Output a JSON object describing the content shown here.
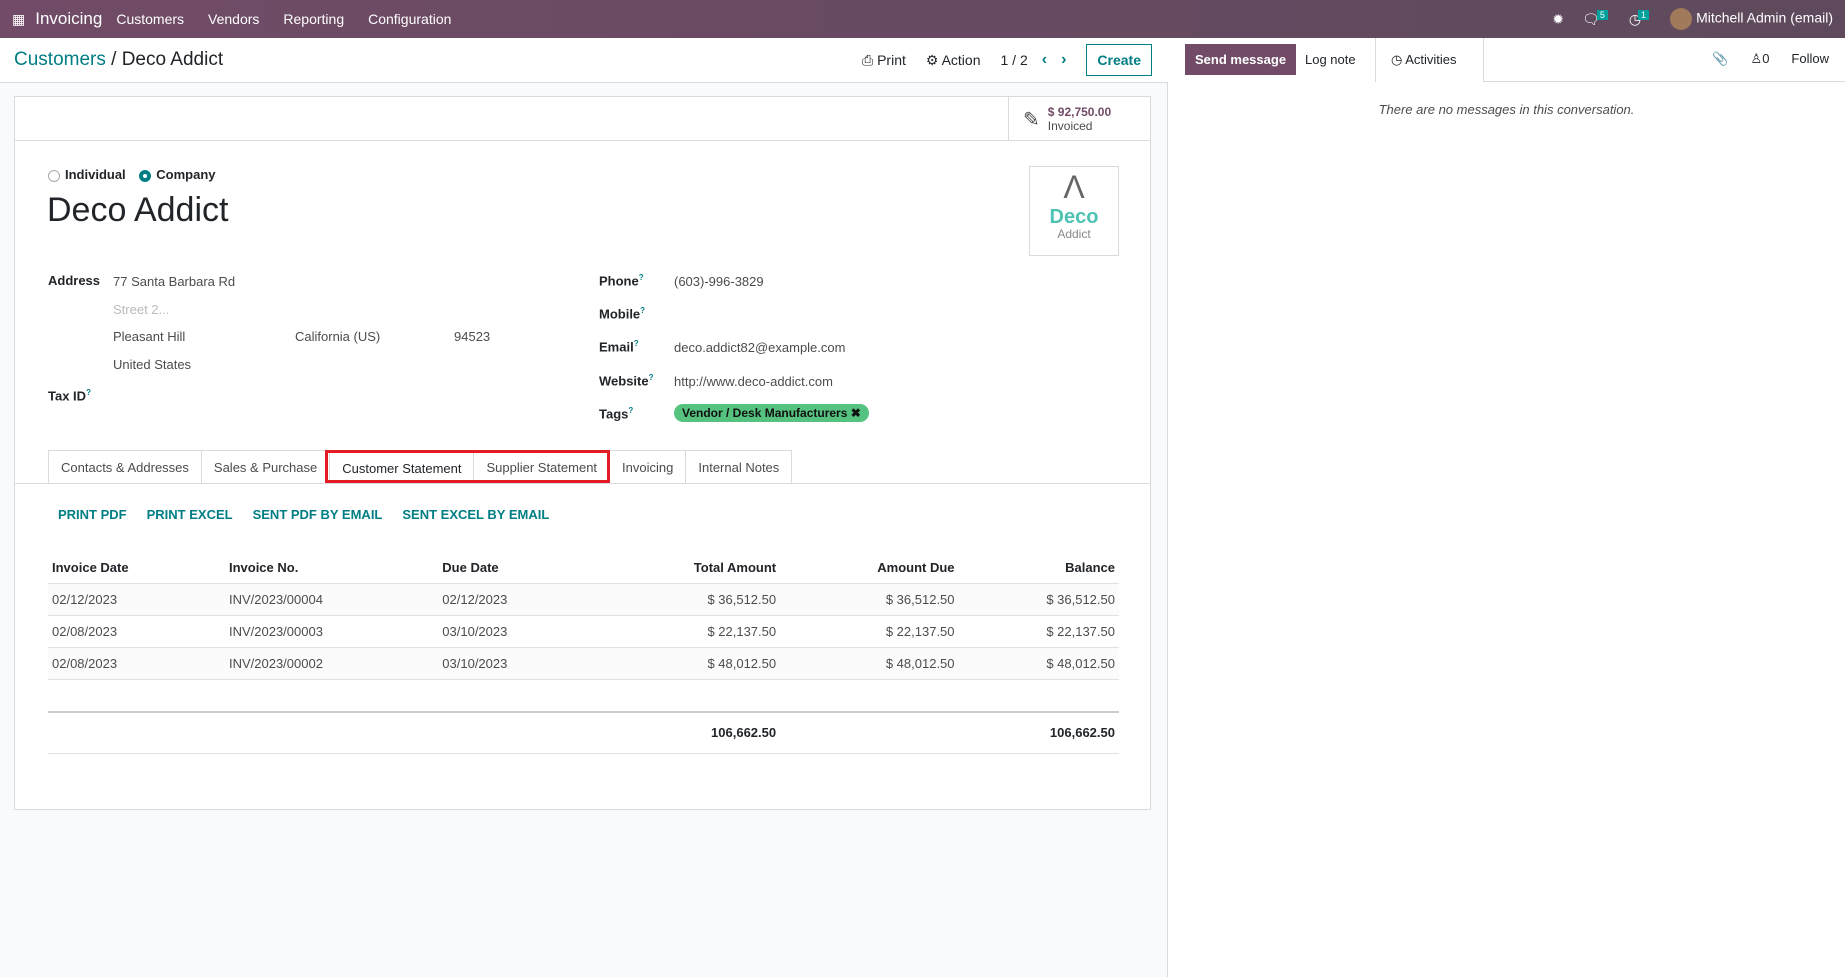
{
  "navbar": {
    "app": "Invoicing",
    "menu": [
      "Customers",
      "Vendors",
      "Reporting",
      "Configuration"
    ],
    "messages_count": "5",
    "activities_count": "1",
    "user": "Mitchell Admin (email)"
  },
  "control_panel": {
    "breadcrumb_parent": "Customers",
    "breadcrumb_current": "Deco Addict",
    "print": "Print",
    "action": "Action",
    "pager": "1 / 2",
    "create": "Create"
  },
  "stat": {
    "value": "$ 92,750.00",
    "label": "Invoiced"
  },
  "form": {
    "type_options": [
      "Individual",
      "Company"
    ],
    "selected_type": "Company",
    "name": "Deco Addict",
    "logo_text": [
      "Deco",
      "Addict"
    ],
    "address_label": "Address",
    "street": "77 Santa Barbara Rd",
    "street2_placeholder": "Street 2...",
    "city": "Pleasant Hill",
    "state": "California (US)",
    "zip": "94523",
    "country": "United States",
    "tax_id_label": "Tax ID",
    "phone_label": "Phone",
    "phone": "(603)-996-3829",
    "mobile_label": "Mobile",
    "email_label": "Email",
    "email": "deco.addict82@example.com",
    "website_label": "Website",
    "website": "http://www.deco-addict.com",
    "tags_label": "Tags",
    "tag": "Vendor / Desk Manufacturers",
    "help": "?"
  },
  "tabs": [
    "Contacts & Addresses",
    "Sales & Purchase",
    "Customer Statement",
    "Supplier Statement",
    "Invoicing",
    "Internal Notes"
  ],
  "active_tab": "Customer Statement",
  "actions": [
    "PRINT PDF",
    "PRINT EXCEL",
    "SENT PDF BY EMAIL",
    "SENT EXCEL BY EMAIL"
  ],
  "table": {
    "headers": [
      "Invoice Date",
      "Invoice No.",
      "Due Date",
      "Total Amount",
      "Amount Due",
      "Balance"
    ],
    "rows": [
      [
        "02/12/2023",
        "INV/2023/00004",
        "02/12/2023",
        "$ 36,512.50",
        "$ 36,512.50",
        "$ 36,512.50"
      ],
      [
        "02/08/2023",
        "INV/2023/00003",
        "03/10/2023",
        "$ 22,137.50",
        "$ 22,137.50",
        "$ 22,137.50"
      ],
      [
        "02/08/2023",
        "INV/2023/00002",
        "03/10/2023",
        "$ 48,012.50",
        "$ 48,012.50",
        "$ 48,012.50"
      ]
    ],
    "total_amount": "106,662.50",
    "total_balance": "106,662.50"
  },
  "chatter": {
    "send_message": "Send message",
    "log_note": "Log note",
    "activities": "Activities",
    "followers": "0",
    "follow": "Follow",
    "empty": "There are no messages in this conversation."
  },
  "colors": {
    "brand": "#714b67",
    "accent": "#017e84",
    "tag": "#55c27f",
    "highlight": "#e31b23"
  }
}
